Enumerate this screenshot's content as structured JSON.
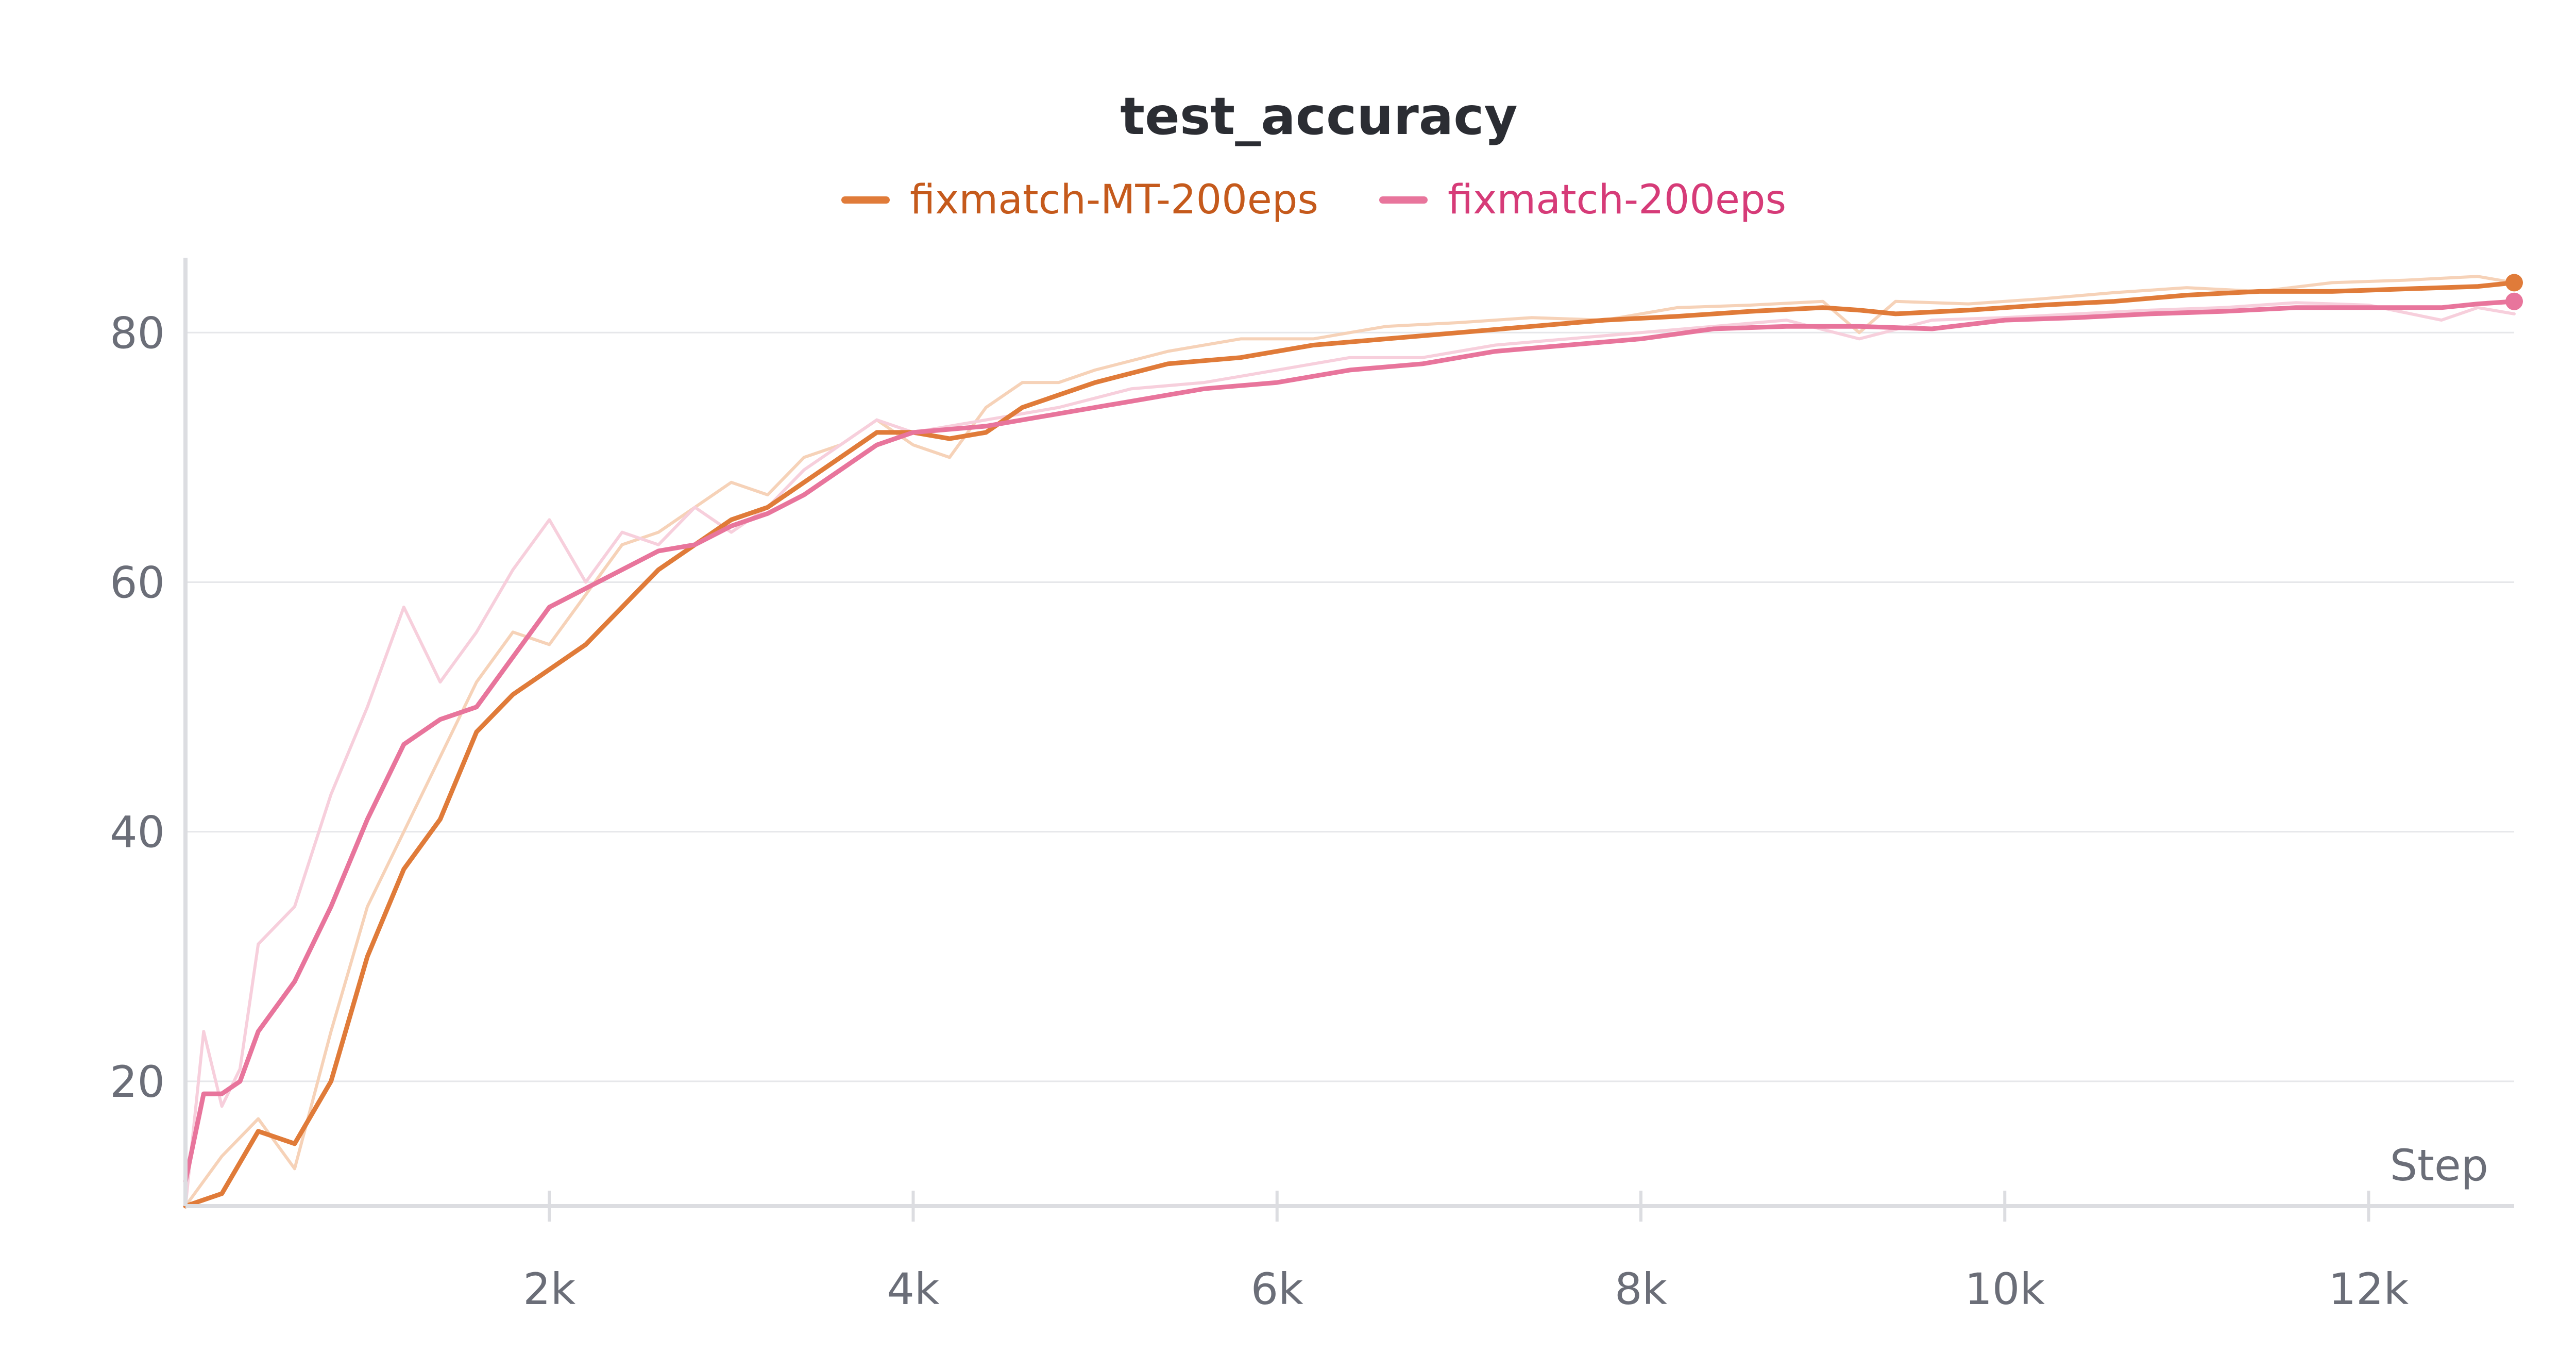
{
  "chart_data": {
    "type": "line",
    "title": "test_accuracy",
    "xlabel": "Step",
    "ylabel": "",
    "xlim": [
      0,
      12800
    ],
    "ylim": [
      10,
      86
    ],
    "x_ticks": [
      {
        "value": 2000,
        "label": "2k"
      },
      {
        "value": 4000,
        "label": "4k"
      },
      {
        "value": 6000,
        "label": "6k"
      },
      {
        "value": 8000,
        "label": "8k"
      },
      {
        "value": 10000,
        "label": "10k"
      },
      {
        "value": 12000,
        "label": "12k"
      }
    ],
    "y_ticks": [
      {
        "value": 20,
        "label": "20"
      },
      {
        "value": 40,
        "label": "40"
      },
      {
        "value": 60,
        "label": "60"
      },
      {
        "value": 80,
        "label": "80"
      }
    ],
    "grid": true,
    "legend_position": "top-center",
    "series": [
      {
        "name": "fixmatch-MT-200eps",
        "color": "#e07b39",
        "raw_color": "#f6d2b8",
        "label_color": "#c55a1c",
        "x": [
          0,
          200,
          400,
          600,
          800,
          1000,
          1200,
          1400,
          1600,
          1800,
          2000,
          2200,
          2400,
          2600,
          2800,
          3000,
          3200,
          3400,
          3600,
          3800,
          4000,
          4200,
          4400,
          4600,
          4800,
          5000,
          5400,
          5800,
          6200,
          6600,
          7000,
          7400,
          7800,
          8200,
          8600,
          9000,
          9200,
          9400,
          9800,
          10200,
          10600,
          11000,
          11400,
          11800,
          12200,
          12600,
          12800
        ],
        "values": [
          10,
          11,
          16,
          15,
          20,
          30,
          37,
          41,
          48,
          51,
          53,
          55,
          58,
          61,
          63,
          65,
          66,
          68,
          70,
          72,
          72,
          71.5,
          72,
          74,
          75,
          76,
          77.5,
          78,
          79,
          79.5,
          80,
          80.5,
          81,
          81.3,
          81.7,
          82,
          81.8,
          81.5,
          81.8,
          82.2,
          82.5,
          83,
          83.3,
          83.3,
          83.5,
          83.7,
          84
        ],
        "raw_values": [
          10,
          14,
          17,
          13,
          24,
          34,
          40,
          46,
          52,
          56,
          55,
          59,
          63,
          64,
          66,
          68,
          67,
          70,
          71,
          73,
          71,
          70,
          74,
          76,
          76,
          77,
          78.5,
          79.5,
          79.5,
          80.5,
          80.8,
          81.2,
          81,
          82,
          82.2,
          82.5,
          80,
          82.5,
          82.3,
          82.7,
          83.2,
          83.6,
          83.3,
          84,
          84.2,
          84.5,
          84
        ]
      },
      {
        "name": "fixmatch-200eps",
        "color": "#e8759c",
        "raw_color": "#f7cfdc",
        "label_color": "#d63b78",
        "x": [
          0,
          100,
          200,
          300,
          400,
          600,
          800,
          1000,
          1200,
          1400,
          1600,
          1800,
          2000,
          2200,
          2400,
          2600,
          2800,
          3000,
          3200,
          3400,
          3600,
          3800,
          4000,
          4400,
          4800,
          5200,
          5600,
          6000,
          6400,
          6800,
          7200,
          7600,
          8000,
          8400,
          8800,
          9200,
          9600,
          10000,
          10400,
          10800,
          11200,
          11600,
          12000,
          12400,
          12600,
          12800
        ],
        "values": [
          12,
          19,
          19,
          20,
          24,
          28,
          34,
          41,
          47,
          49,
          50,
          54,
          58,
          59.5,
          61,
          62.5,
          63,
          64.5,
          65.5,
          67,
          69,
          71,
          72,
          72.5,
          73.5,
          74.5,
          75.5,
          76,
          77,
          77.5,
          78.5,
          79,
          79.5,
          80.3,
          80.5,
          80.5,
          80.3,
          81,
          81.2,
          81.5,
          81.7,
          82,
          82,
          82,
          82.3,
          82.5
        ],
        "raw_values": [
          10,
          24,
          18,
          21,
          31,
          34,
          43,
          50,
          58,
          52,
          56,
          61,
          65,
          60,
          64,
          63,
          66,
          64,
          66,
          69,
          71,
          73,
          72,
          73,
          74,
          75.5,
          76,
          77,
          78,
          78,
          79,
          79.5,
          80,
          80.5,
          81,
          79.5,
          81,
          81.2,
          81.5,
          81.8,
          82,
          82.4,
          82.2,
          81,
          82,
          81.5
        ]
      }
    ]
  }
}
